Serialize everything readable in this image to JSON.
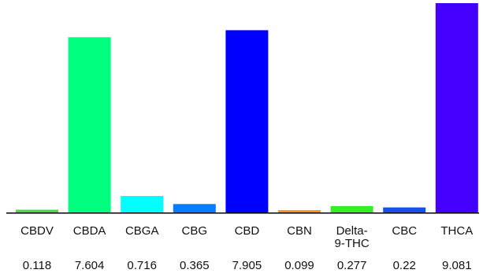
{
  "chart_data": {
    "type": "bar",
    "categories": [
      [
        "CBDV"
      ],
      [
        "CBDA"
      ],
      [
        "CBGA"
      ],
      [
        "CBG"
      ],
      [
        "CBD"
      ],
      [
        "CBN"
      ],
      [
        "Delta-",
        "9-THC"
      ],
      [
        "CBC"
      ],
      [
        "THCA"
      ]
    ],
    "values": [
      0.118,
      7.604,
      0.716,
      0.365,
      7.905,
      0.099,
      0.277,
      0.22,
      9.081
    ],
    "value_labels": [
      "0.118",
      "7.604",
      "0.716",
      "0.365",
      "7.905",
      "0.099",
      "0.277",
      "0.22",
      "9.081"
    ],
    "colors": [
      "#4cd64c",
      "#00ff7f",
      "#00ffff",
      "#0a7aff",
      "#0000ff",
      "#ff8c1a",
      "#33ee22",
      "#1a50e8",
      "#4400ff"
    ],
    "ylim": [
      0,
      9.081
    ],
    "grid": false,
    "legend": "none",
    "title": "",
    "xlabel": "",
    "ylabel": ""
  }
}
